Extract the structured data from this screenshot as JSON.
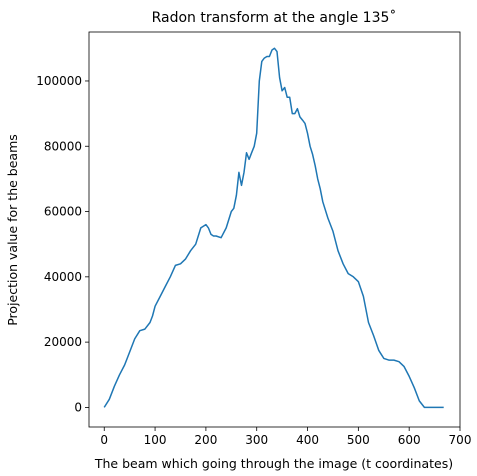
{
  "chart_data": {
    "type": "line",
    "title": "Radon transform at the angle 135$^\\circ$",
    "title_display": "Radon transform at the angle 135˚",
    "xlabel": "The beam which going through the image (t coordinates)",
    "ylabel": "Projection value for the beams",
    "xlim": [
      -30,
      700
    ],
    "ylim": [
      -6000,
      115000
    ],
    "xticks": [
      0,
      100,
      200,
      300,
      400,
      500,
      600,
      700
    ],
    "yticks": [
      0,
      20000,
      40000,
      60000,
      80000,
      100000
    ],
    "xtick_labels": [
      "0",
      "100",
      "200",
      "300",
      "400",
      "500",
      "600",
      "700"
    ],
    "ytick_labels": [
      "0",
      "20000",
      "40000",
      "60000",
      "80000",
      "100000"
    ],
    "grid": false,
    "series": [
      {
        "color": "#1f77b4",
        "x": [
          0,
          10,
          20,
          30,
          40,
          50,
          60,
          70,
          80,
          90,
          95,
          100,
          110,
          120,
          130,
          140,
          150,
          160,
          170,
          180,
          190,
          200,
          205,
          210,
          215,
          220,
          230,
          240,
          250,
          255,
          260,
          265,
          270,
          275,
          280,
          285,
          290,
          295,
          300,
          305,
          310,
          315,
          320,
          325,
          330,
          335,
          340,
          345,
          350,
          355,
          360,
          365,
          370,
          375,
          380,
          385,
          390,
          395,
          400,
          405,
          410,
          415,
          420,
          425,
          430,
          440,
          450,
          460,
          470,
          480,
          490,
          500,
          510,
          520,
          530,
          540,
          550,
          560,
          570,
          580,
          590,
          600,
          610,
          620,
          630,
          640,
          650,
          660,
          668
        ],
        "y": [
          0,
          2500,
          6500,
          10000,
          13000,
          17000,
          21000,
          23500,
          24000,
          26000,
          28000,
          31000,
          34000,
          37000,
          40000,
          43500,
          44000,
          45500,
          48000,
          50000,
          55000,
          56000,
          55000,
          53000,
          52500,
          52500,
          52000,
          55000,
          60000,
          61000,
          65000,
          72000,
          68000,
          72000,
          78000,
          76000,
          78000,
          80000,
          84000,
          100000,
          106000,
          107000,
          107500,
          107500,
          109500,
          110000,
          109000,
          101000,
          97000,
          98000,
          95000,
          95000,
          90000,
          90000,
          91500,
          89000,
          88000,
          87000,
          84000,
          80000,
          77500,
          74000,
          70000,
          67000,
          63000,
          58000,
          54000,
          48000,
          44000,
          41000,
          40000,
          38500,
          34000,
          26000,
          22000,
          17500,
          15000,
          14500,
          14500,
          14000,
          12500,
          9500,
          6000,
          2000,
          0,
          0,
          0,
          0,
          0
        ]
      }
    ]
  }
}
